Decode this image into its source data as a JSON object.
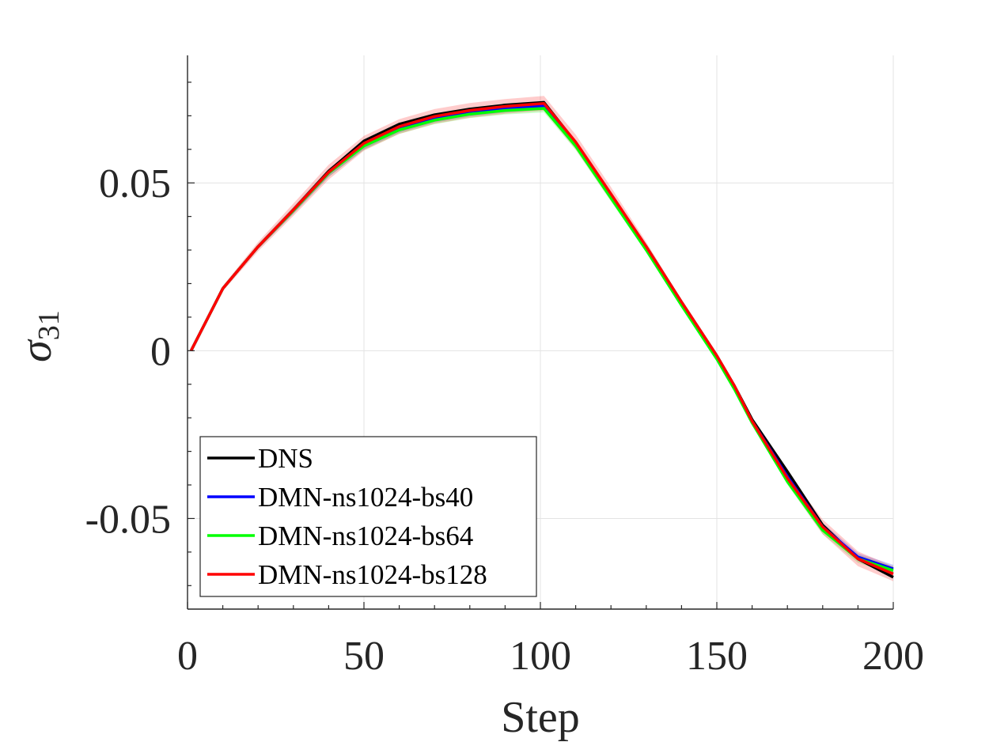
{
  "chart_data": {
    "type": "line",
    "xlabel": "Step",
    "ylabel_base": "σ",
    "ylabel_sub": "31",
    "xlim": [
      0,
      200
    ],
    "ylim": [
      -0.077,
      0.088
    ],
    "xticks": [
      0,
      50,
      100,
      150,
      200
    ],
    "xtick_labels": [
      "0",
      "50",
      "100",
      "150",
      "200"
    ],
    "yticks": [
      -0.05,
      0,
      0.05
    ],
    "ytick_labels": [
      "-0.05",
      "0",
      "0.05"
    ],
    "grid": true,
    "legend_position": "bottom-left",
    "series": [
      {
        "name": "DNS",
        "color": "#000000",
        "band": 0,
        "x": [
          1,
          10,
          20,
          30,
          40,
          50,
          60,
          70,
          80,
          90,
          101,
          110,
          120,
          130,
          140,
          150,
          155,
          160,
          170,
          180,
          190,
          200
        ],
        "y": [
          0,
          0.0185,
          0.031,
          0.042,
          0.0535,
          0.0625,
          0.0675,
          0.0703,
          0.072,
          0.0732,
          0.074,
          0.062,
          0.0465,
          0.031,
          0.0145,
          -0.0015,
          -0.0105,
          -0.0205,
          -0.036,
          -0.052,
          -0.062,
          -0.0675
        ]
      },
      {
        "name": "DMN-ns1024-bs40",
        "color": "#0000ff",
        "band": 0.0012,
        "x": [
          1,
          10,
          20,
          30,
          40,
          50,
          60,
          70,
          80,
          90,
          101,
          110,
          120,
          130,
          140,
          150,
          155,
          160,
          170,
          180,
          190,
          200
        ],
        "y": [
          0,
          0.0185,
          0.031,
          0.0418,
          0.053,
          0.0612,
          0.0662,
          0.0692,
          0.071,
          0.0722,
          0.073,
          0.0615,
          0.046,
          0.0305,
          0.014,
          -0.002,
          -0.011,
          -0.021,
          -0.0375,
          -0.0525,
          -0.0615,
          -0.065
        ]
      },
      {
        "name": "DMN-ns1024-bs64",
        "color": "#00ff00",
        "band": 0.0012,
        "x": [
          1,
          10,
          20,
          30,
          40,
          50,
          60,
          70,
          80,
          90,
          101,
          110,
          120,
          130,
          140,
          150,
          155,
          160,
          170,
          180,
          190,
          200
        ],
        "y": [
          0,
          0.0185,
          0.031,
          0.0418,
          0.053,
          0.061,
          0.0658,
          0.0687,
          0.0705,
          0.0716,
          0.0722,
          0.061,
          0.0455,
          0.03,
          0.0135,
          -0.0025,
          -0.0115,
          -0.0215,
          -0.039,
          -0.0535,
          -0.062,
          -0.0655
        ]
      },
      {
        "name": "DMN-ns1024-bs128",
        "color": "#ff0000",
        "band": 0.0022,
        "x": [
          1,
          10,
          20,
          30,
          40,
          50,
          60,
          70,
          80,
          90,
          101,
          110,
          120,
          130,
          140,
          150,
          155,
          160,
          170,
          180,
          190,
          200
        ],
        "y": [
          0,
          0.0185,
          0.031,
          0.042,
          0.0532,
          0.0618,
          0.0668,
          0.0698,
          0.0716,
          0.0728,
          0.0737,
          0.0622,
          0.0467,
          0.031,
          0.0145,
          -0.0015,
          -0.0105,
          -0.021,
          -0.038,
          -0.0525,
          -0.062,
          -0.0665
        ]
      }
    ]
  }
}
